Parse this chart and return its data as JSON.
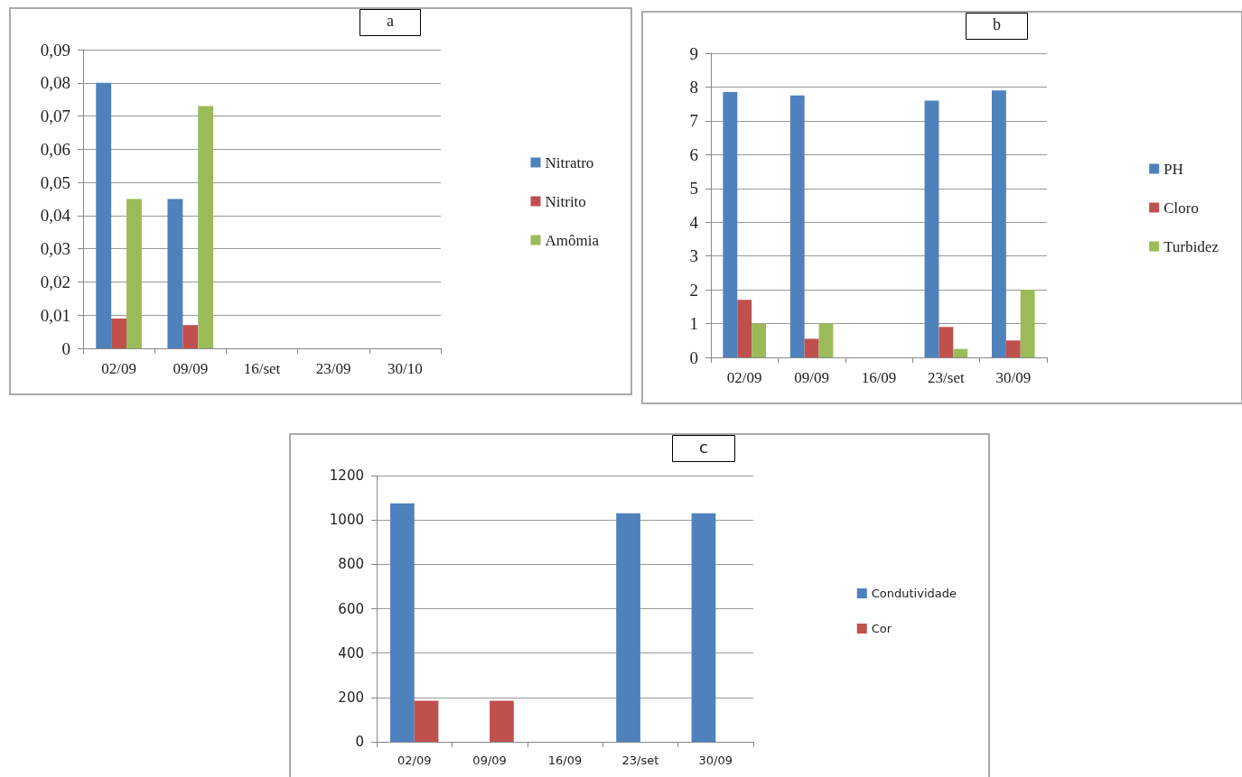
{
  "chart_data": [
    {
      "type": "bar",
      "title": "a",
      "categories": [
        "02/09",
        "09/09",
        "16/set",
        "23/09",
        "30/10"
      ],
      "series": [
        {
          "name": "Nitratro",
          "color": "#4f81bd",
          "values": [
            0.08,
            0.045,
            null,
            null,
            null
          ]
        },
        {
          "name": "Nitrito",
          "color": "#c0504d",
          "values": [
            0.009,
            0.007,
            null,
            null,
            null
          ]
        },
        {
          "name": "Amômia",
          "color": "#9bbb59",
          "values": [
            0.045,
            0.073,
            null,
            null,
            null
          ]
        }
      ],
      "ylim": [
        0,
        0.09
      ],
      "yticks": [
        0,
        {
          "value": 0.01,
          "label": "0,01"
        },
        {
          "value": 0.02,
          "label": "0,02"
        },
        {
          "value": 0.03,
          "label": "0,03"
        },
        {
          "value": 0.04,
          "label": "0,04"
        },
        {
          "value": 0.05,
          "label": "0,05"
        },
        {
          "value": 0.06,
          "label": "0,06"
        },
        {
          "value": 0.07,
          "label": "0,07"
        },
        {
          "value": 0.08,
          "label": "0,08"
        },
        {
          "value": 0.09,
          "label": "0,09"
        }
      ],
      "grid": "y",
      "legend": "right"
    },
    {
      "type": "bar",
      "title": "b",
      "categories": [
        "02/09",
        "09/09",
        "16/09",
        "23/set",
        "30/09"
      ],
      "series": [
        {
          "name": "PH",
          "color": "#4f81bd",
          "values": [
            7.85,
            7.75,
            null,
            7.6,
            7.9
          ]
        },
        {
          "name": "Cloro",
          "color": "#c0504d",
          "values": [
            1.7,
            0.55,
            null,
            0.9,
            0.5
          ]
        },
        {
          "name": "Turbidez",
          "color": "#9bbb59",
          "values": [
            1.0,
            1.0,
            null,
            0.25,
            2.0
          ]
        }
      ],
      "ylim": [
        0,
        9
      ],
      "yticks": [
        0,
        1,
        2,
        3,
        4,
        5,
        6,
        7,
        8,
        9
      ],
      "grid": "y",
      "legend": "right"
    },
    {
      "type": "bar",
      "title": "c",
      "categories": [
        "02/09",
        "09/09",
        "16/09",
        "23/set",
        "30/09"
      ],
      "series": [
        {
          "name": "Condutividade",
          "color": "#4f81bd",
          "values": [
            1075,
            null,
            null,
            1030,
            1030
          ]
        },
        {
          "name": "Cor",
          "color": "#c0504d",
          "values": [
            185,
            185,
            null,
            null,
            null
          ]
        }
      ],
      "ylim": [
        0,
        1200
      ],
      "yticks": [
        0,
        200,
        400,
        600,
        800,
        1000,
        1200
      ],
      "grid": "y",
      "legend": "right"
    }
  ]
}
